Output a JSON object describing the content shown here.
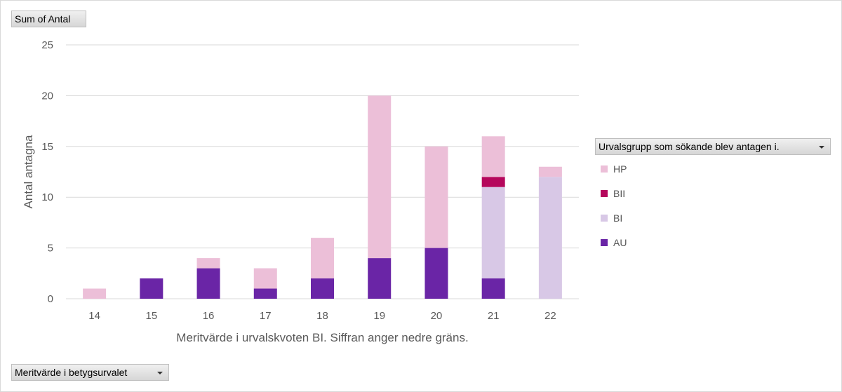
{
  "pivot": {
    "value_field": "Sum of Antal",
    "axis_field": "Meritvärde i betygsurvalet",
    "legend_field": "Urvalsgrupp som sökande blev antagen i."
  },
  "colors": {
    "AU": "#6a25a6",
    "BI": "#d8c8e6",
    "BII": "#b5075c",
    "HP": "#ecbfd8",
    "grid": "#d9d9d9",
    "axis_text": "#595959"
  },
  "chart_data": {
    "type": "bar",
    "stacked": true,
    "categories": [
      "14",
      "15",
      "16",
      "17",
      "18",
      "19",
      "20",
      "21",
      "22"
    ],
    "series": [
      {
        "name": "AU",
        "values": [
          0,
          2,
          3,
          1,
          2,
          4,
          5,
          2,
          0
        ]
      },
      {
        "name": "BI",
        "values": [
          0,
          0,
          0,
          0,
          0,
          0,
          0,
          9,
          12
        ]
      },
      {
        "name": "BII",
        "values": [
          0,
          0,
          0,
          0,
          0,
          0,
          0,
          1,
          0
        ]
      },
      {
        "name": "HP",
        "values": [
          1,
          0,
          1,
          2,
          4,
          16,
          10,
          4,
          1
        ]
      }
    ],
    "legend_order": [
      "HP",
      "BII",
      "BI",
      "AU"
    ],
    "xlabel": "Meritvärde i urvalskvoten BI. Siffran anger nedre gräns.",
    "ylabel": "Antal antagna",
    "ylim": [
      0,
      25
    ],
    "yticks": [
      0,
      5,
      10,
      15,
      20,
      25
    ],
    "grid": true,
    "legend_position": "right"
  }
}
